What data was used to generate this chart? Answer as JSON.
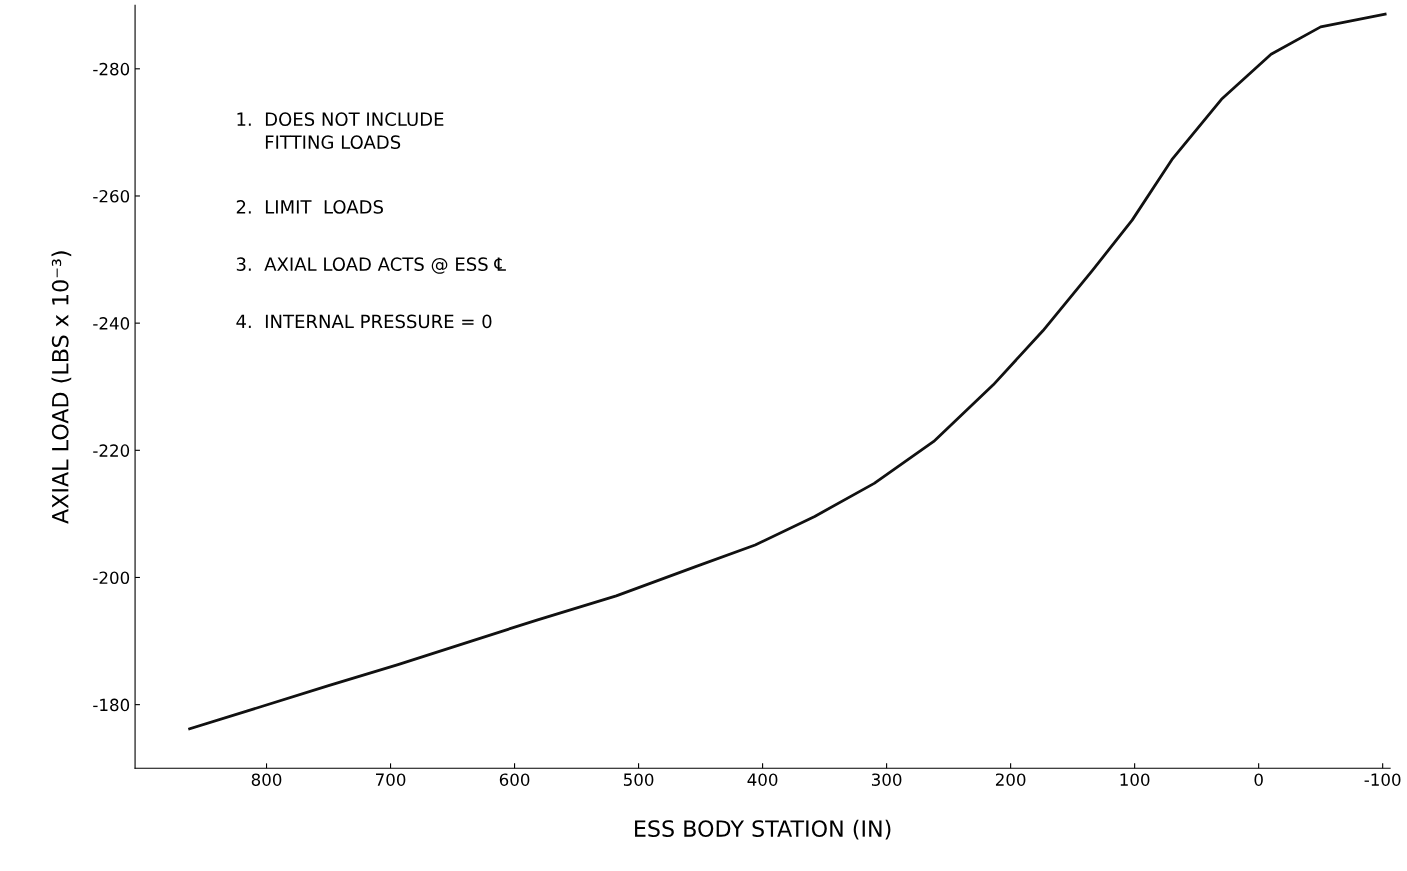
{
  "chart_data": {
    "type": "line",
    "xlabel": "ESS BODY STATION (IN)",
    "ylabel": "AXIAL LOAD (LBS x 10⁻³)",
    "x": [
      862,
      814,
      750,
      694,
      638,
      582,
      518,
      454,
      406,
      358,
      310,
      262,
      214,
      174,
      134,
      102,
      70,
      30,
      -10,
      -50,
      -102
    ],
    "series": [
      {
        "color": "#111111",
        "values": [
          -176.2,
          -179.1,
          -183.0,
          -186.3,
          -189.8,
          -193.3,
          -197.1,
          -201.7,
          -205.1,
          -209.6,
          -214.8,
          -221.4,
          -230.3,
          -238.8,
          -248.3,
          -256.2,
          -265.7,
          -275.2,
          -282.3,
          -286.6,
          -288.6
        ]
      }
    ],
    "xlim": [
      906,
      -106
    ],
    "xticks": [
      800,
      700,
      600,
      500,
      400,
      300,
      200,
      100,
      0,
      -100
    ],
    "ylim": [
      -170,
      -290
    ],
    "yticks": [
      -180,
      -200,
      -220,
      -240,
      -260,
      -280
    ],
    "grid": false,
    "legend": false,
    "marker": "none",
    "line_style": "solid",
    "annotations": [
      "1.  DOES NOT INCLUDE\n     FITTING LOADS",
      "2.  LIMIT  LOADS",
      "3.  AXIAL LOAD ACTS @ ESS ℄",
      "4.  INTERNAL PRESSURE = 0"
    ]
  }
}
